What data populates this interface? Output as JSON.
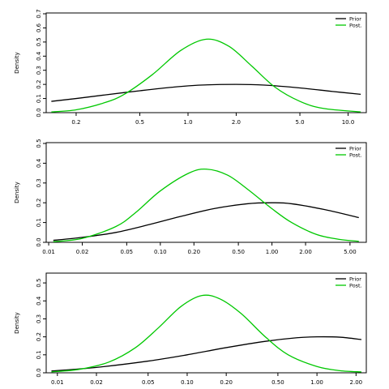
{
  "chart_data": [
    {
      "type": "line",
      "xscale": "log",
      "xlim": [
        0.13,
        13.0
      ],
      "ylim": [
        0,
        0.7
      ],
      "ylabel": "Density",
      "xticks": [
        0.2,
        0.5,
        1.0,
        2.0,
        5.0,
        10.0
      ],
      "xtick_labels": [
        "0.2",
        "0.5",
        "1.0",
        "2.0",
        "5.0",
        "10.0"
      ],
      "yticks": [
        0,
        0.1,
        0.2,
        0.3,
        0.4,
        0.5,
        0.6,
        0.7
      ],
      "ytick_labels": [
        "0.0",
        "0.1",
        "0.2",
        "0.3",
        "0.4",
        "0.5",
        "0.6",
        "0.7"
      ],
      "legend": {
        "position": "top-right",
        "entries": [
          "Prior",
          "Post."
        ]
      },
      "series": [
        {
          "name": "Prior",
          "color": "#000000",
          "x": [
            0.14,
            0.2,
            0.3,
            0.5,
            0.8,
            1.2,
            2.0,
            3.0,
            5.0,
            8.0,
            12.0
          ],
          "y": [
            0.08,
            0.1,
            0.125,
            0.155,
            0.18,
            0.195,
            0.2,
            0.195,
            0.175,
            0.15,
            0.13
          ]
        },
        {
          "name": "Post.",
          "color": "#00c800",
          "x": [
            0.14,
            0.2,
            0.3,
            0.4,
            0.6,
            0.9,
            1.3,
            1.8,
            2.5,
            3.5,
            5.0,
            7.0,
            12.0
          ],
          "y": [
            0.005,
            0.02,
            0.07,
            0.13,
            0.27,
            0.44,
            0.52,
            0.47,
            0.33,
            0.18,
            0.08,
            0.03,
            0.005
          ]
        }
      ]
    },
    {
      "type": "line",
      "xscale": "log",
      "xlim": [
        0.0095,
        7.0
      ],
      "ylim": [
        0,
        0.5
      ],
      "ylabel": "Density",
      "xticks": [
        0.01,
        0.02,
        0.05,
        0.1,
        0.2,
        0.5,
        1.0,
        2.0,
        5.0
      ],
      "xtick_labels": [
        "0.01",
        "0.02",
        "0.05",
        "0.10",
        "0.20",
        "0.50",
        "1.00",
        "2.00",
        "5.00"
      ],
      "yticks": [
        0,
        0.1,
        0.2,
        0.3,
        0.4,
        0.5
      ],
      "ytick_labels": [
        "0.0",
        "0.1",
        "0.2",
        "0.3",
        "0.4",
        "0.5"
      ],
      "legend": {
        "position": "top-right",
        "entries": [
          "Prior",
          "Post."
        ]
      },
      "series": [
        {
          "name": "Prior",
          "color": "#000000",
          "x": [
            0.011,
            0.02,
            0.04,
            0.08,
            0.15,
            0.3,
            0.6,
            1.0,
            1.5,
            3.0,
            6.0
          ],
          "y": [
            0.01,
            0.025,
            0.05,
            0.09,
            0.13,
            0.17,
            0.195,
            0.2,
            0.195,
            0.165,
            0.125
          ]
        },
        {
          "name": "Post.",
          "color": "#00c800",
          "x": [
            0.011,
            0.02,
            0.04,
            0.06,
            0.1,
            0.18,
            0.26,
            0.4,
            0.6,
            1.0,
            1.5,
            2.5,
            4.0,
            6.0
          ],
          "y": [
            0.003,
            0.02,
            0.08,
            0.15,
            0.26,
            0.35,
            0.37,
            0.34,
            0.27,
            0.17,
            0.1,
            0.04,
            0.015,
            0.005
          ]
        }
      ]
    },
    {
      "type": "line",
      "xscale": "log",
      "xlim": [
        0.0082,
        2.4
      ],
      "ylim": [
        0,
        0.55
      ],
      "ylabel": "Density",
      "xticks": [
        0.01,
        0.02,
        0.05,
        0.1,
        0.2,
        0.5,
        1.0,
        2.0
      ],
      "xtick_labels": [
        "0.01",
        "0.02",
        "0.05",
        "0.10",
        "0.20",
        "0.50",
        "1.00",
        "2.00"
      ],
      "yticks": [
        0,
        0.1,
        0.2,
        0.3,
        0.4,
        0.5
      ],
      "ytick_labels": [
        "0.0",
        "0.1",
        "0.2",
        "0.3",
        "0.4",
        "0.5"
      ],
      "legend": {
        "position": "top-right",
        "entries": [
          "Prior",
          "Post."
        ]
      },
      "series": [
        {
          "name": "Prior",
          "color": "#000000",
          "x": [
            0.009,
            0.02,
            0.05,
            0.1,
            0.2,
            0.4,
            0.7,
            1.0,
            1.5,
            2.2
          ],
          "y": [
            0.01,
            0.03,
            0.065,
            0.1,
            0.14,
            0.175,
            0.195,
            0.2,
            0.198,
            0.185
          ]
        },
        {
          "name": "Post.",
          "color": "#00c800",
          "x": [
            0.009,
            0.015,
            0.025,
            0.04,
            0.06,
            0.09,
            0.13,
            0.18,
            0.26,
            0.4,
            0.6,
            1.0,
            1.5,
            2.2
          ],
          "y": [
            0.005,
            0.02,
            0.06,
            0.14,
            0.25,
            0.37,
            0.43,
            0.41,
            0.33,
            0.2,
            0.1,
            0.035,
            0.012,
            0.005
          ]
        }
      ]
    }
  ]
}
